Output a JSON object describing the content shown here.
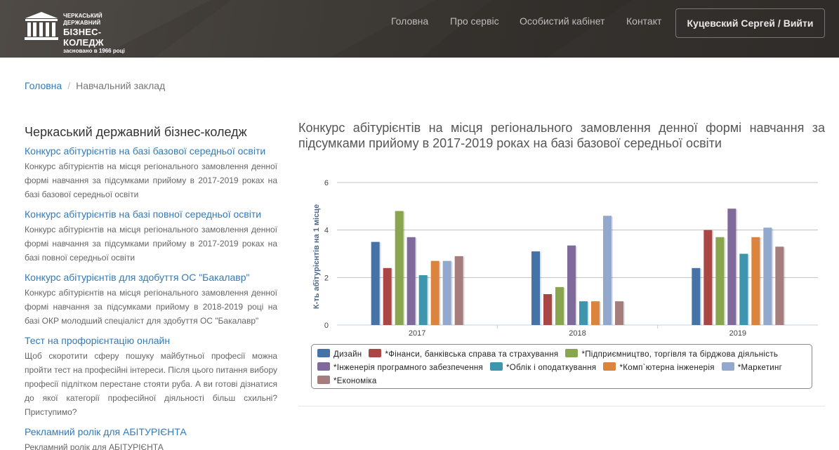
{
  "header": {
    "logo": {
      "line1": "ЧЕРКАСЬКИЙ ДЕРЖАВНИЙ",
      "line2": "БІЗНЕС-КОЛЕДЖ",
      "line3": "засновано в 1966 році"
    },
    "nav": [
      {
        "label": "Головна"
      },
      {
        "label": "Про сервіс"
      },
      {
        "label": "Особистий кабінет"
      },
      {
        "label": "Контакт"
      }
    ],
    "user_button": "Куцевский Сергей / Вийти"
  },
  "breadcrumb": {
    "home": "Головна",
    "separator": "/",
    "current": "Навчальний заклад"
  },
  "sidebar": {
    "title": "Черкаський державний бізнес-коледж",
    "items": [
      {
        "link": "Конкурс абітурієнтів на базі базової середньої освіти",
        "desc": "Конкурс абітурієнтів на місця регіонального замовлення денної формі навчання за підсумками прийому в 2017-2019 роках на базі базової середньої освіти"
      },
      {
        "link": "Конкурс абітурієнтів на базі повної середньої освіти",
        "desc": "Конкурс абітурієнтів на місця регіонального замовлення денної формі навчання за підсумками прийому в 2017-2019 роках на базі повної середньої освіти"
      },
      {
        "link": "Конкурс абітурієнтів для здобуття ОС \"Бакалавр\"",
        "desc": "Конкурс абітурієнтів на місця регіонального замовлення денної формі навчання за підсумками прийому в 2018-2019 році на базі ОКР молодший спеціаліст для здобуття ОС \"Бакалавр\""
      },
      {
        "link": "Тест на профорієнтацію онлайн",
        "desc": "Щоб скоротити сферу пошуку майбутньої професії можна пройти тест на професійні інтереси. Після цього питання вибору професії підлітком перестане стояти руба. А ви готові дізнатися до якої категорії професійної діяльності більш схильні? Приступимо?"
      },
      {
        "link": "Рекламний ролік для АБІТУРІЄНТА",
        "desc": "Рекламний ролік для АБІТУРІЄНТА"
      }
    ]
  },
  "main": {
    "title": "Конкурс абітурієнтів на місця регіонального замовлення денної формі навчання за підсумками прийому в 2017-2019 роках на базі базової середньої освіти"
  },
  "colors": {
    "link": "#337ab7",
    "header_bg": "#3a3632"
  },
  "chart_data": {
    "type": "bar",
    "categories": [
      "2017",
      "2018",
      "2019"
    ],
    "ylabel": "К-ть абітурієнтів на 1 місце",
    "ylim": [
      0,
      6
    ],
    "yticks": [
      0,
      2,
      4,
      6
    ],
    "grid": true,
    "legend_position": "bottom",
    "series": [
      {
        "name": "Дизайн",
        "color": "#4572A7",
        "values": [
          3.5,
          3.1,
          2.4
        ]
      },
      {
        "name": "*Фінанси, банківська справа та страхування",
        "color": "#AA4643",
        "values": [
          2.4,
          1.3,
          4.0
        ]
      },
      {
        "name": "*Підприємництво, торгівля та бірджова діяльність",
        "color": "#89A54E",
        "values": [
          4.8,
          1.6,
          3.7
        ]
      },
      {
        "name": "*Інженерія програмного забезпечення",
        "color": "#80699B",
        "values": [
          3.7,
          3.35,
          4.9
        ]
      },
      {
        "name": "*Облік і оподаткування",
        "color": "#3D96AE",
        "values": [
          2.1,
          1.0,
          3.0
        ]
      },
      {
        "name": "*Комп`ютерна інженерія",
        "color": "#DB843D",
        "values": [
          2.7,
          1.0,
          3.7
        ]
      },
      {
        "name": "*Маркетинг",
        "color": "#92A8CD",
        "values": [
          2.7,
          4.6,
          4.1
        ]
      },
      {
        "name": "*Економіка",
        "color": "#A47D7C",
        "values": [
          2.9,
          1.0,
          3.3
        ]
      }
    ]
  }
}
